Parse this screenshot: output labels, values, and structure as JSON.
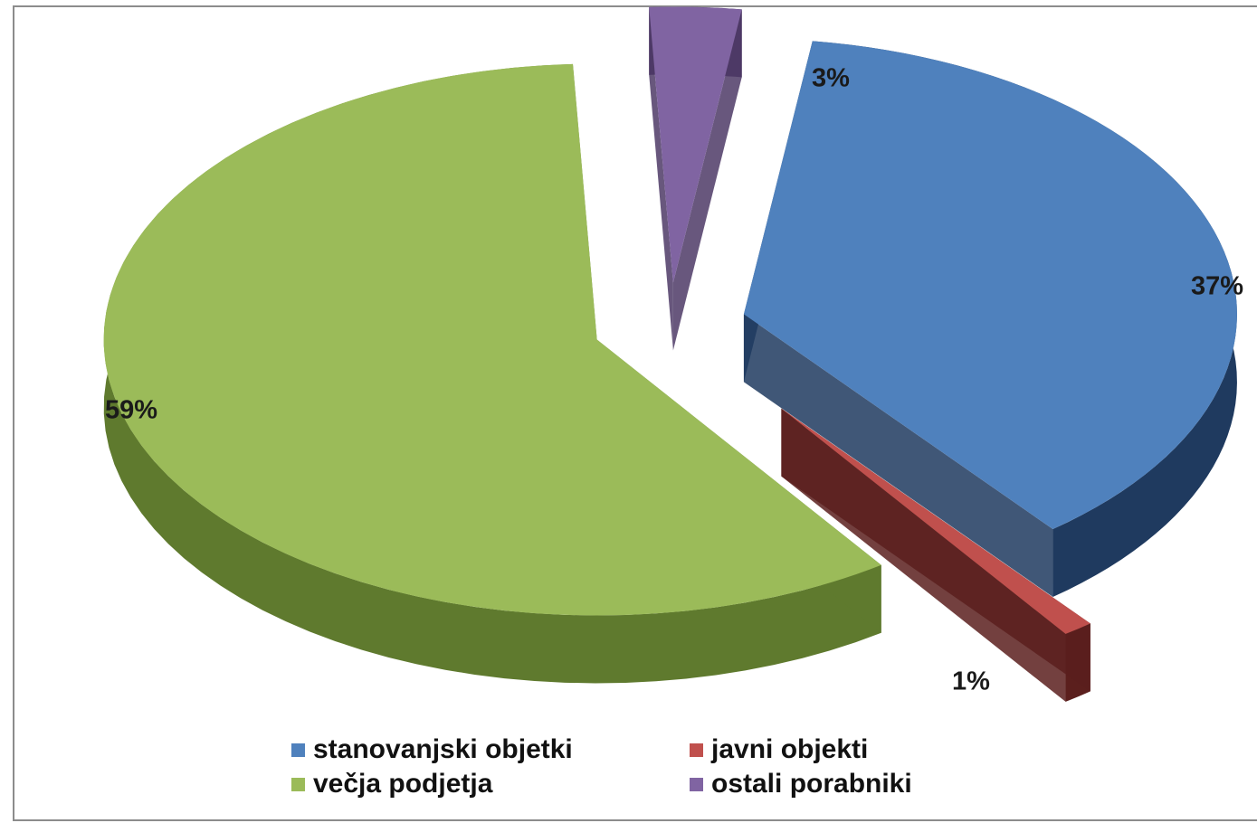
{
  "chart_data": {
    "type": "pie",
    "style": "3d-exploded",
    "slices": [
      {
        "name": "stanovanjski objetki",
        "value": 37,
        "label": "37%",
        "color": "#4f81bd",
        "side_color": "#1f3a5f"
      },
      {
        "name": "javni objekti",
        "value": 1,
        "label": "1%",
        "color": "#c0504d",
        "side_color": "#5b1f1d"
      },
      {
        "name": "večja podjetja",
        "value": 59,
        "label": "59%",
        "color": "#9bbb59",
        "side_color": "#5f7a2e"
      },
      {
        "name": "ostali porabniki",
        "value": 3,
        "label": "3%",
        "color": "#8064a2",
        "side_color": "#4e3a66"
      }
    ],
    "legend": [
      {
        "label": "stanovanjski objetki",
        "color": "#4f81bd"
      },
      {
        "label": "javni objekti",
        "color": "#c0504d"
      },
      {
        "label": "večja podjetja",
        "color": "#9bbb59"
      },
      {
        "label": "ostali porabniki",
        "color": "#8064a2"
      }
    ],
    "legend_position": "bottom"
  }
}
